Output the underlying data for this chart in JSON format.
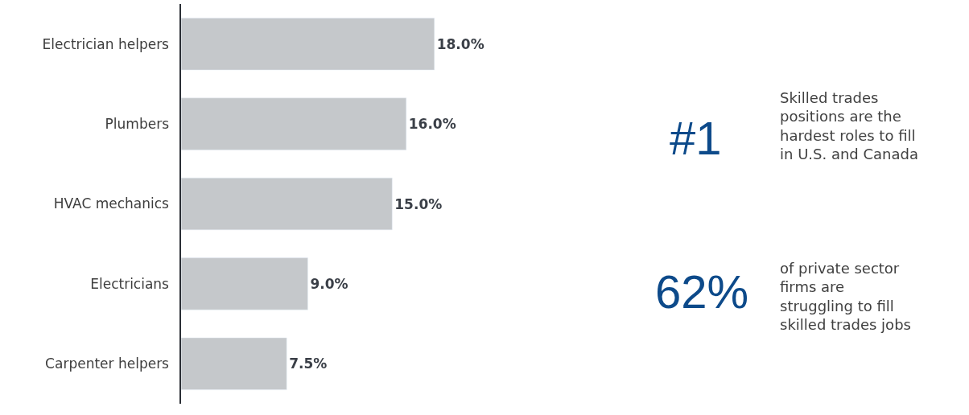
{
  "chart_data": {
    "type": "bar",
    "orientation": "horizontal",
    "categories": [
      "Electrician helpers",
      "Plumbers",
      "HVAC mechanics",
      "Electricians",
      "Carpenter helpers"
    ],
    "values": [
      18.0,
      16.0,
      15.0,
      9.0,
      7.5
    ],
    "value_labels": [
      "18.0%",
      "16.0%",
      "15.0%",
      "9.0%",
      "7.5%"
    ],
    "color": "#c5c8cb",
    "annotations": [
      "#1",
      "Skilled trades\npositions are the\nhardest roles to fill\nin U.S. and Canada",
      "62%",
      "of private sector\nfirms are\nstruggling to fill\nskilled trades jobs"
    ]
  }
}
